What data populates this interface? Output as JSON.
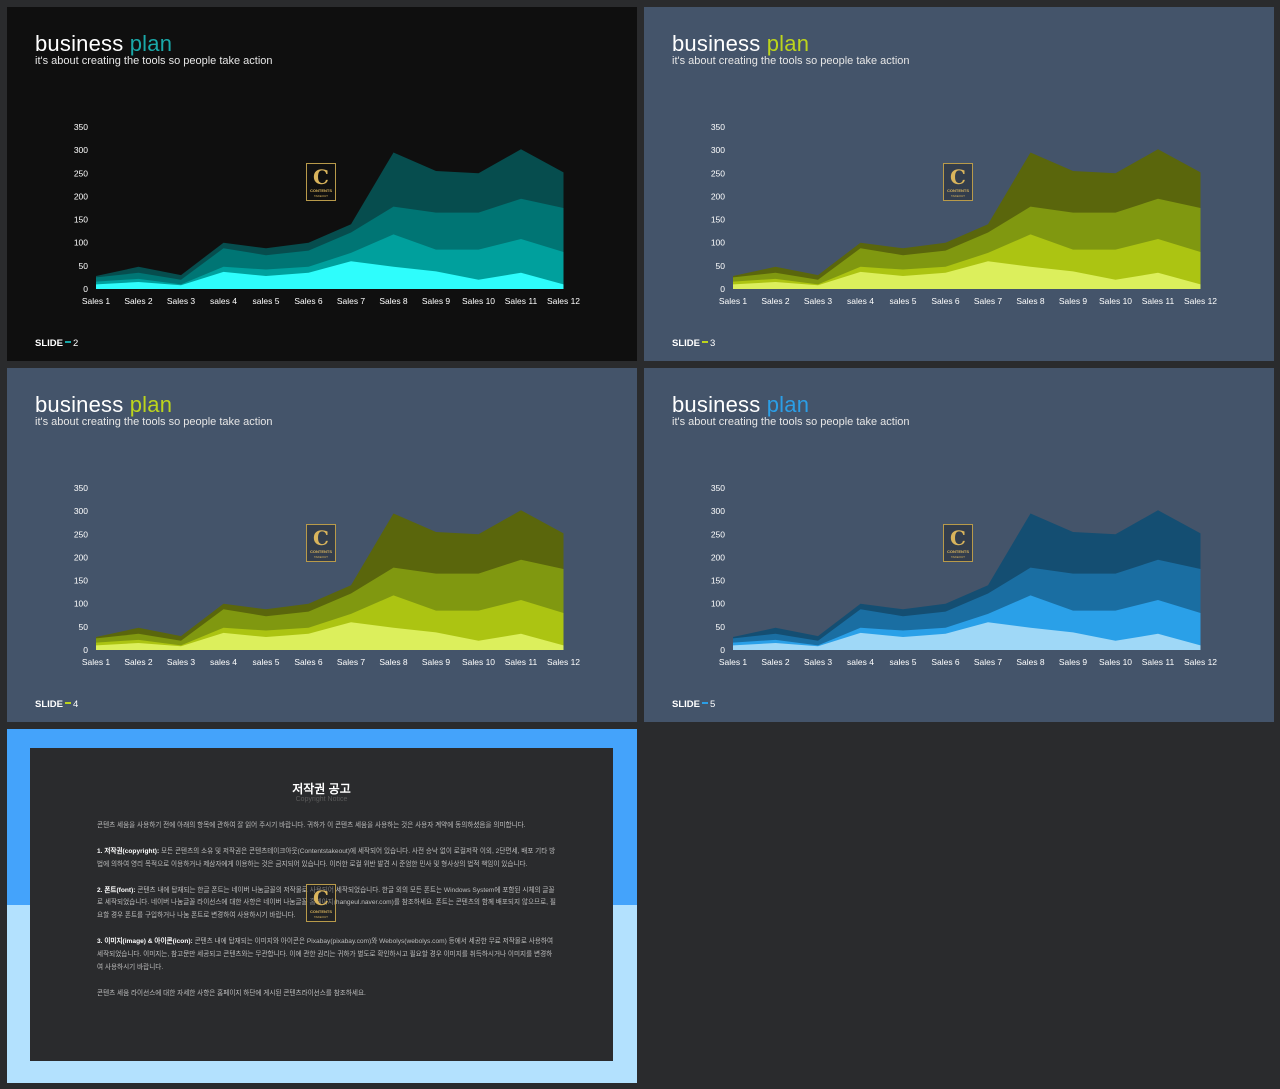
{
  "colors": {
    "page_bg": "#2a2b2d",
    "notice_top": "#44a3fb",
    "notice_bottom": "#b3e1fe",
    "notice_panel": "#2a2b2d"
  },
  "logo": {
    "icon": "contents-logo-icon",
    "letter": "C",
    "line1": "CONTENTS",
    "line2": "TAKEOUT"
  },
  "slides": [
    {
      "title_main": "business",
      "title_accent": "plan",
      "subtitle": "it's about creating the tools so people take action",
      "slide_label": "SLIDE",
      "slide_number": "2",
      "bg": "#0f0f0f",
      "accent": "#1aa8a8",
      "colors": [
        "#2efdfc",
        "#00a09d",
        "#007574",
        "#064d4e"
      ]
    },
    {
      "title_main": "business",
      "title_accent": "plan",
      "subtitle": "it's about creating the tools so people take action",
      "slide_label": "SLIDE",
      "slide_number": "3",
      "bg": "#44546a",
      "accent": "#bcd41c",
      "colors": [
        "#dcef5c",
        "#acc412",
        "#809810",
        "#5a660c"
      ]
    },
    {
      "title_main": "business",
      "title_accent": "plan",
      "subtitle": "it's about creating the tools so people take action",
      "slide_label": "SLIDE",
      "slide_number": "4",
      "bg": "#44546a",
      "accent": "#bcd41c",
      "colors": [
        "#dcef5c",
        "#acc412",
        "#809810",
        "#5a660c"
      ]
    },
    {
      "title_main": "business",
      "title_accent": "plan",
      "subtitle": "it's about creating the tools so people take action",
      "slide_label": "SLIDE",
      "slide_number": "5",
      "bg": "#44546a",
      "accent": "#2b9ee6",
      "colors": [
        "#9fd8f7",
        "#2aa0e8",
        "#1a6ea2",
        "#144e72"
      ]
    }
  ],
  "chart_data": [
    {
      "type": "area",
      "categories": [
        "Sales 1",
        "Sales 2",
        "Sales 3",
        "sales 4",
        "sales 5",
        "Sales 6",
        "Sales 7",
        "Sales 8",
        "Sales 9",
        "Sales 10",
        "Sales 11",
        "Sales 12"
      ],
      "ylim": [
        0,
        350
      ],
      "yticks": [
        0,
        50,
        100,
        150,
        200,
        250,
        300,
        350
      ],
      "series": [
        {
          "values": [
            10,
            15,
            8,
            37,
            28,
            35,
            60,
            48,
            38,
            20,
            35,
            10
          ]
        },
        {
          "values": [
            16,
            22,
            10,
            48,
            42,
            48,
            78,
            118,
            85,
            85,
            108,
            80
          ]
        },
        {
          "values": [
            25,
            35,
            20,
            88,
            73,
            83,
            122,
            178,
            165,
            165,
            195,
            175
          ]
        },
        {
          "values": [
            28,
            48,
            30,
            100,
            88,
            100,
            140,
            295,
            255,
            250,
            302,
            252
          ]
        }
      ]
    },
    {
      "type": "area",
      "categories": [
        "Sales 1",
        "Sales 2",
        "Sales 3",
        "sales 4",
        "sales 5",
        "Sales 6",
        "Sales 7",
        "Sales 8",
        "Sales 9",
        "Sales 10",
        "Sales 11",
        "Sales 12"
      ],
      "ylim": [
        0,
        350
      ],
      "yticks": [
        0,
        50,
        100,
        150,
        200,
        250,
        300,
        350
      ],
      "series": [
        {
          "values": [
            10,
            15,
            8,
            37,
            28,
            35,
            60,
            48,
            38,
            20,
            35,
            10
          ]
        },
        {
          "values": [
            16,
            22,
            10,
            48,
            42,
            48,
            78,
            118,
            85,
            85,
            108,
            80
          ]
        },
        {
          "values": [
            25,
            35,
            20,
            88,
            73,
            83,
            122,
            178,
            165,
            165,
            195,
            175
          ]
        },
        {
          "values": [
            28,
            48,
            30,
            100,
            88,
            100,
            140,
            295,
            255,
            250,
            302,
            252
          ]
        }
      ]
    },
    {
      "type": "area",
      "categories": [
        "Sales 1",
        "Sales 2",
        "Sales 3",
        "sales 4",
        "sales 5",
        "Sales 6",
        "Sales 7",
        "Sales 8",
        "Sales 9",
        "Sales 10",
        "Sales 11",
        "Sales 12"
      ],
      "ylim": [
        0,
        350
      ],
      "yticks": [
        0,
        50,
        100,
        150,
        200,
        250,
        300,
        350
      ],
      "series": [
        {
          "values": [
            10,
            15,
            8,
            37,
            28,
            35,
            60,
            48,
            38,
            20,
            35,
            10
          ]
        },
        {
          "values": [
            16,
            22,
            10,
            48,
            42,
            48,
            78,
            118,
            85,
            85,
            108,
            80
          ]
        },
        {
          "values": [
            25,
            35,
            20,
            88,
            73,
            83,
            122,
            178,
            165,
            165,
            195,
            175
          ]
        },
        {
          "values": [
            28,
            48,
            30,
            100,
            88,
            100,
            140,
            295,
            255,
            250,
            302,
            252
          ]
        }
      ]
    },
    {
      "type": "area",
      "categories": [
        "Sales 1",
        "Sales 2",
        "Sales 3",
        "sales 4",
        "sales 5",
        "Sales 6",
        "Sales 7",
        "Sales 8",
        "Sales 9",
        "Sales 10",
        "Sales 11",
        "Sales 12"
      ],
      "ylim": [
        0,
        350
      ],
      "yticks": [
        0,
        50,
        100,
        150,
        200,
        250,
        300,
        350
      ],
      "series": [
        {
          "values": [
            10,
            15,
            8,
            37,
            28,
            35,
            60,
            48,
            38,
            20,
            35,
            10
          ]
        },
        {
          "values": [
            16,
            22,
            10,
            48,
            42,
            48,
            78,
            118,
            85,
            85,
            108,
            80
          ]
        },
        {
          "values": [
            25,
            35,
            20,
            88,
            73,
            83,
            122,
            178,
            165,
            165,
            195,
            175
          ]
        },
        {
          "values": [
            28,
            48,
            30,
            100,
            88,
            100,
            140,
            295,
            255,
            250,
            302,
            252
          ]
        }
      ]
    }
  ],
  "notice": {
    "title": "저작권 공고",
    "subtitle": "Copyright Notice",
    "intro": "콘텐츠 세움을 사용하기 전에 아래의 항목에 관하여 잘 읽어 주시기 바랍니다. 귀하가 이 콘텐츠 세움을 사용하는 것은 사용자 계약에 동의하셨음을 의미합니다.",
    "s1_head": "1. 저작권(copyright):",
    "s1_body": " 모든 콘텐츠의 소유 및 저작권은 콘텐츠테이크아웃(Contentstakeout)에 세작되어 있습니다. 사전 승낙 없이 로컬저작 이외, 2단편세, 배포 기타 방법에 의하여 영리 목적으로 이용하거나 제삼자에게 이용하는 것은 금지되어 있습니다. 이러한 로컬 위반 발견 시 준엄한 민사 및 형사상의 법적 책임이 있습니다.",
    "s2_head": "2. 폰트(font):",
    "s2_body": " 콘텐츠 내에 탑재되는 한글 폰트는 네이버 나눔글꼴의 저작물로 사용되어 세작되었습니다. 한글 외의 모든 폰트는 Windows System에 포함된 시체의 글꼴로 세작되었습니다. 네이버 나눔글꼴 라이선스에 대한 사항은 네이버 나눔글꼴 홈페이지(hangeul.naver.com)를 참조하세요. 폰트는 콘텐츠의 함께 배포되지 않으므로, 필요할 경우 폰트를 구입하거나 나눔 폰트로 변경하여 사용하시기 바랍니다.",
    "s3_head": "3. 이미지(image) & 아이콘(icon):",
    "s3_body": " 콘텐츠 내에 탑재되는 이미지와 아이콘은 Pixabay(pixabay.com)와 Webolys(webolys.com) 등에서 세공한 무료 저작물로 사용하여 세작되었습니다. 이미지는, 참고문만 세공되고 콘텐츠와는 무관합니다. 이에 관한 권리는 귀하가 별도로 확인하시고 필요할 경우 이미지를 취득하시거나 이미지를 변경하여 사용하시기 바랍니다.",
    "footer": "콘텐츠 세움 라이선스에 대한 자세한 사항은 홈페이지 하단에 게시된 콘텐츠라이선스를 참조하세요."
  }
}
